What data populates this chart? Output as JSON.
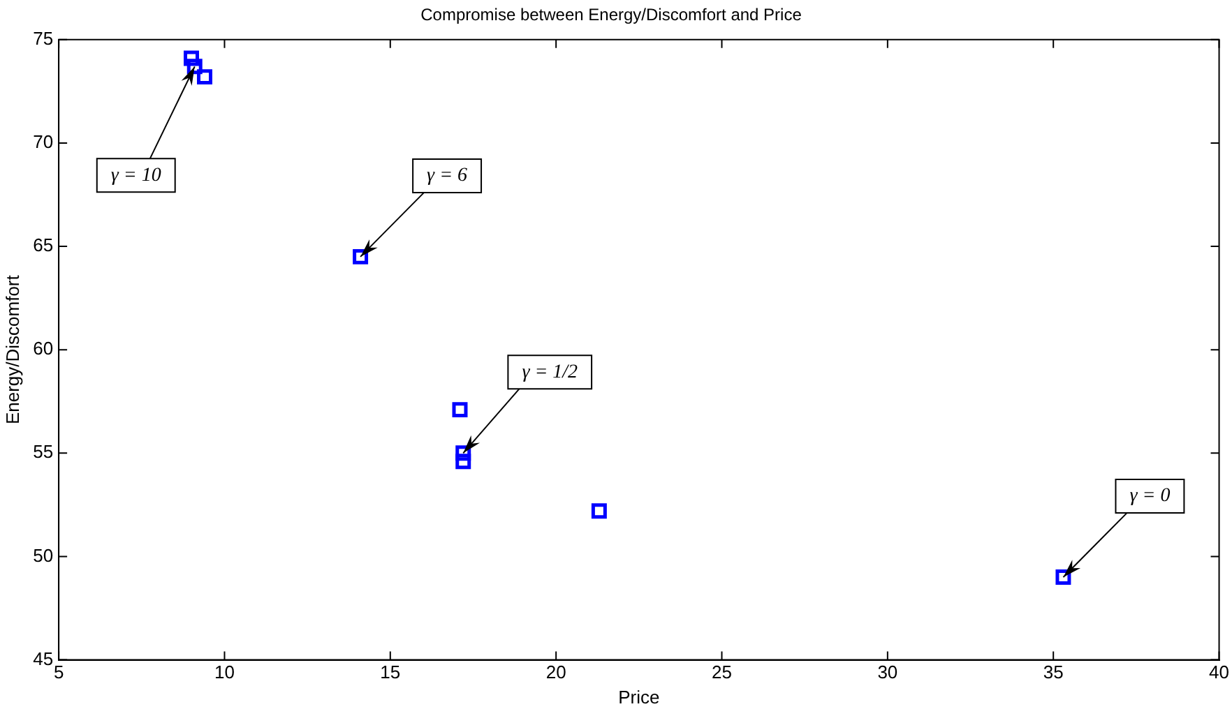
{
  "chart_data": {
    "type": "scatter",
    "title": "Compromise between Energy/Discomfort and Price",
    "xlabel": "Price",
    "ylabel": "Energy/Discomfort",
    "x": [
      9.0,
      9.1,
      9.4,
      14.1,
      17.1,
      17.2,
      17.2,
      21.3,
      35.3
    ],
    "values": [
      74.1,
      73.7,
      73.2,
      64.5,
      57.1,
      55.0,
      54.6,
      52.2,
      49.0
    ],
    "color": "#0000ff",
    "marker": "square",
    "xlim": [
      5,
      40
    ],
    "xticks": [
      5,
      10,
      15,
      20,
      25,
      30,
      35,
      40
    ],
    "ylim": [
      45,
      75
    ],
    "yticks": [
      45,
      50,
      55,
      60,
      65,
      70,
      75
    ],
    "grid": false,
    "legend": false,
    "annotations": [
      {
        "text": "γ = 10",
        "x": 9.1,
        "y": 73.7
      },
      {
        "text": "γ = 6",
        "x": 14.1,
        "y": 64.5
      },
      {
        "text": "γ = 1/2",
        "x": 17.2,
        "y": 55.0
      },
      {
        "text": "γ = 0",
        "x": 35.3,
        "y": 49.0
      }
    ]
  }
}
